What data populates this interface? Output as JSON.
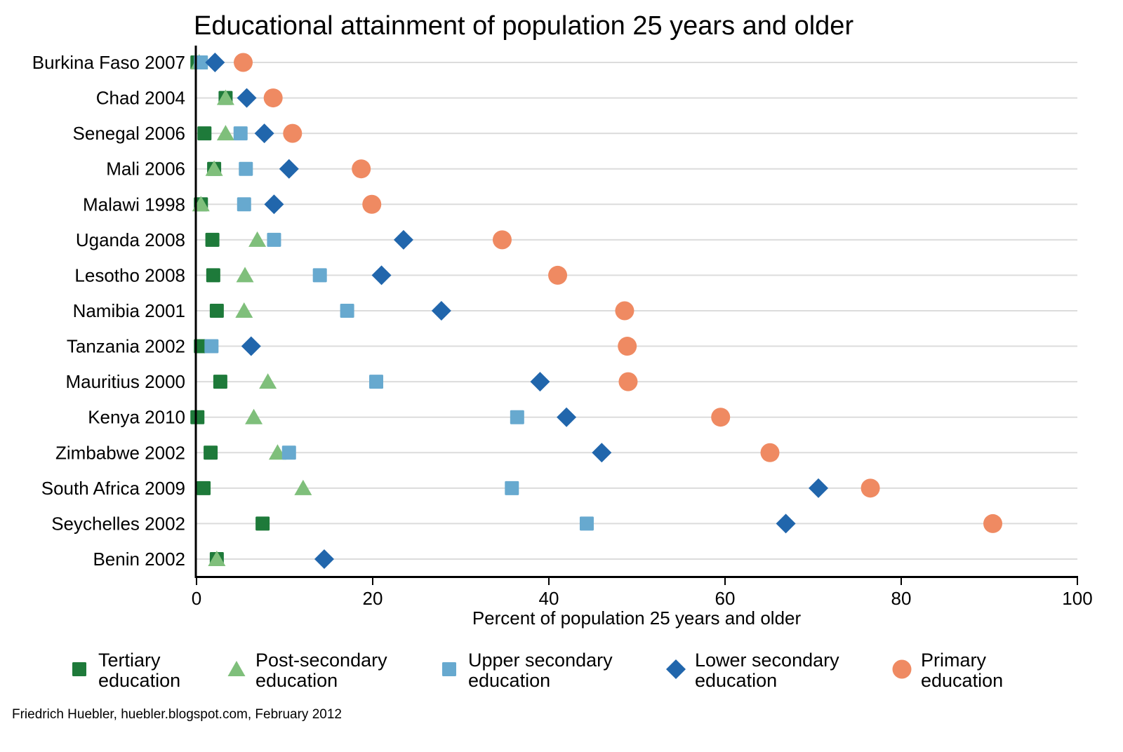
{
  "chart_data": {
    "type": "scatter",
    "title": "Educational attainment of population 25 years and older",
    "xlabel": "Percent of population 25 years and older",
    "ylabel": "",
    "xlim": [
      0,
      100
    ],
    "xticks": [
      0,
      20,
      40,
      60,
      80,
      100
    ],
    "grid": true,
    "legend_position": "bottom",
    "categories": [
      "Burkina Faso 2007",
      "Chad 2004",
      "Senegal 2006",
      "Mali 2006",
      "Malawi 1998",
      "Uganda 2008",
      "Lesotho 2008",
      "Namibia 2001",
      "Tanzania 2002",
      "Mauritius 2000",
      "Kenya 2010",
      "Zimbabwe 2002",
      "South Africa 2009",
      "Seychelles 2002",
      "Benin 2002"
    ],
    "series": [
      {
        "name": "Tertiary education",
        "legend": [
          "Tertiary",
          "education"
        ],
        "marker": "square",
        "color": "#1e7a3a",
        "values": [
          0.1,
          3.3,
          0.9,
          2.0,
          0.5,
          1.8,
          1.9,
          2.3,
          0.5,
          2.7,
          0.1,
          1.6,
          0.8,
          7.5,
          2.3
        ]
      },
      {
        "name": "Post-secondary education",
        "legend": [
          "Post-secondary",
          "education"
        ],
        "marker": "triangle",
        "color": "#7fbf7b",
        "values": [
          0.3,
          3.3,
          3.3,
          2.0,
          0.5,
          6.9,
          5.5,
          5.4,
          null,
          8.1,
          6.5,
          9.2,
          12.1,
          null,
          2.3
        ]
      },
      {
        "name": "Upper secondary education",
        "legend": [
          "Upper secondary",
          "education"
        ],
        "marker": "square",
        "color": "#67a9cf",
        "values": [
          0.5,
          null,
          5.0,
          5.6,
          5.4,
          8.8,
          14.0,
          17.1,
          1.7,
          20.4,
          36.4,
          10.5,
          35.8,
          44.3,
          null
        ]
      },
      {
        "name": "Lower secondary education",
        "legend": [
          "Lower secondary",
          "education"
        ],
        "marker": "diamond",
        "color": "#2166ac",
        "values": [
          2.1,
          5.7,
          7.7,
          10.5,
          8.8,
          23.5,
          21.0,
          27.8,
          6.2,
          39.0,
          42.0,
          46.0,
          70.6,
          66.9,
          14.5
        ]
      },
      {
        "name": "Primary education",
        "legend": [
          "Primary",
          "education"
        ],
        "marker": "circle",
        "color": "#ef8a62",
        "values": [
          5.3,
          8.7,
          10.9,
          18.7,
          19.9,
          34.7,
          41.0,
          48.6,
          48.9,
          49.0,
          59.5,
          65.1,
          76.5,
          90.4,
          null
        ]
      }
    ],
    "note": "Friedrich Huebler, huebler.blogspot.com, February 2012"
  }
}
